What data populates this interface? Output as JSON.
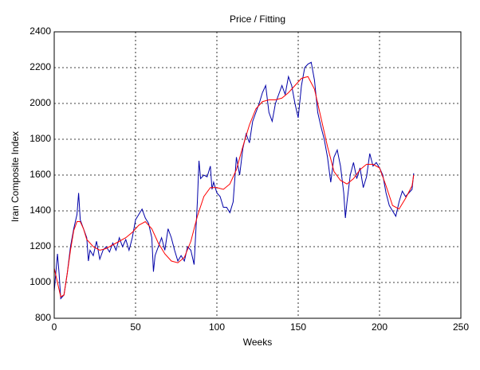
{
  "chart_data": {
    "type": "line",
    "title": "Price / Fitting",
    "xlabel": "Weeks",
    "ylabel": "Iran Composite Index",
    "xlim": [
      0,
      250
    ],
    "xticks": [
      0,
      50,
      100,
      150,
      200,
      250
    ],
    "ylim": [
      800,
      2400
    ],
    "yticks": [
      800,
      1000,
      1200,
      1400,
      1600,
      1800,
      2000,
      2200,
      2400
    ],
    "grid": true,
    "series": [
      {
        "color": "#0000a8",
        "x": [
          0,
          2,
          3,
          4,
          6,
          8,
          10,
          12,
          14,
          15,
          16,
          18,
          20,
          21,
          22,
          24,
          26,
          28,
          30,
          32,
          34,
          36,
          38,
          40,
          42,
          44,
          46,
          48,
          50,
          52,
          54,
          56,
          58,
          60,
          61,
          62,
          64,
          66,
          68,
          70,
          72,
          74,
          76,
          78,
          80,
          82,
          84,
          86,
          88,
          89,
          90,
          92,
          94,
          96,
          97,
          98,
          100,
          102,
          104,
          106,
          108,
          110,
          112,
          114,
          116,
          118,
          120,
          122,
          124,
          126,
          128,
          130,
          132,
          134,
          136,
          138,
          140,
          142,
          144,
          146,
          148,
          150,
          152,
          154,
          156,
          158,
          160,
          162,
          164,
          166,
          168,
          170,
          172,
          174,
          176,
          178,
          179,
          180,
          182,
          184,
          186,
          188,
          190,
          192,
          194,
          196,
          198,
          200,
          202,
          204,
          206,
          208,
          210,
          212,
          214,
          216,
          218,
          220,
          221
        ],
        "values": [
          950,
          1160,
          1050,
          910,
          930,
          1050,
          1200,
          1300,
          1380,
          1500,
          1350,
          1300,
          1250,
          1120,
          1180,
          1150,
          1230,
          1130,
          1180,
          1200,
          1170,
          1220,
          1180,
          1250,
          1200,
          1240,
          1180,
          1250,
          1350,
          1380,
          1410,
          1360,
          1330,
          1250,
          1060,
          1150,
          1200,
          1250,
          1180,
          1300,
          1250,
          1180,
          1120,
          1150,
          1120,
          1200,
          1180,
          1100,
          1450,
          1680,
          1580,
          1600,
          1590,
          1650,
          1520,
          1560,
          1500,
          1480,
          1420,
          1420,
          1390,
          1450,
          1700,
          1600,
          1750,
          1830,
          1780,
          1900,
          1950,
          2000,
          2060,
          2100,
          1950,
          1900,
          2000,
          2050,
          2100,
          2050,
          2150,
          2100,
          2000,
          1920,
          2100,
          2200,
          2220,
          2230,
          2130,
          1950,
          1870,
          1800,
          1700,
          1560,
          1700,
          1740,
          1650,
          1500,
          1360,
          1450,
          1600,
          1670,
          1580,
          1640,
          1530,
          1590,
          1720,
          1650,
          1670,
          1640,
          1600,
          1500,
          1430,
          1400,
          1370,
          1450,
          1510,
          1480,
          1500,
          1520,
          1610
        ]
      },
      {
        "color": "#ff0000",
        "x": [
          0,
          2,
          4,
          6,
          8,
          10,
          12,
          14,
          16,
          18,
          20,
          24,
          28,
          32,
          36,
          40,
          44,
          48,
          52,
          56,
          60,
          64,
          68,
          72,
          76,
          80,
          84,
          88,
          92,
          96,
          100,
          104,
          108,
          112,
          116,
          120,
          124,
          128,
          132,
          136,
          140,
          144,
          148,
          152,
          156,
          160,
          164,
          168,
          172,
          176,
          180,
          184,
          188,
          192,
          196,
          200,
          204,
          208,
          212,
          216,
          220,
          221
        ],
        "values": [
          1080,
          1000,
          920,
          930,
          1050,
          1180,
          1290,
          1340,
          1340,
          1300,
          1240,
          1200,
          1180,
          1190,
          1210,
          1230,
          1250,
          1280,
          1320,
          1340,
          1300,
          1220,
          1160,
          1120,
          1110,
          1140,
          1230,
          1370,
          1480,
          1530,
          1530,
          1520,
          1550,
          1630,
          1760,
          1880,
          1970,
          2010,
          2020,
          2020,
          2030,
          2060,
          2100,
          2140,
          2150,
          2080,
          1920,
          1760,
          1620,
          1570,
          1550,
          1580,
          1630,
          1660,
          1660,
          1640,
          1540,
          1430,
          1410,
          1470,
          1540,
          1600
        ]
      }
    ]
  }
}
